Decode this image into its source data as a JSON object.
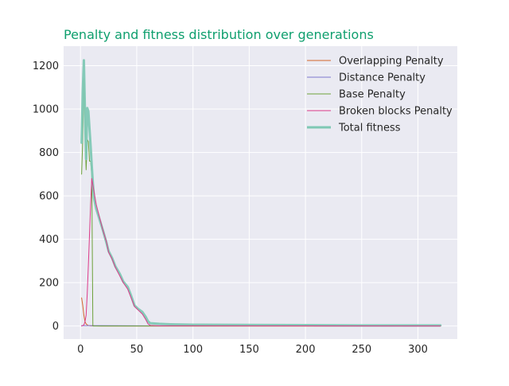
{
  "chart_data": {
    "type": "line",
    "title": "Penalty and fitness distribution over generations",
    "xlabel": "",
    "ylabel": "",
    "xlim": [
      -15,
      335
    ],
    "ylim": [
      -60,
      1290
    ],
    "xticks": [
      0,
      50,
      100,
      150,
      200,
      250,
      300
    ],
    "yticks": [
      0,
      200,
      400,
      600,
      800,
      1000,
      1200
    ],
    "grid": true,
    "legend_position": "top-right",
    "colors": {
      "background": "#EAEAF2",
      "grid": "#FFFFFF",
      "title": "#0F9F6E"
    },
    "series": [
      {
        "name": "Overlapping Penalty",
        "color": "#D4652B",
        "width": 1,
        "points": [
          [
            1,
            130
          ],
          [
            2,
            95
          ],
          [
            3,
            50
          ],
          [
            4,
            20
          ],
          [
            5,
            10
          ],
          [
            6,
            5
          ],
          [
            7,
            3
          ],
          [
            9,
            1
          ],
          [
            20,
            0
          ],
          [
            60,
            0
          ],
          [
            320,
            0
          ]
        ]
      },
      {
        "name": "Distance Penalty",
        "color": "#7F78CF",
        "width": 1,
        "points": [
          [
            1,
            2
          ],
          [
            10,
            2
          ],
          [
            60,
            1
          ],
          [
            320,
            0
          ]
        ]
      },
      {
        "name": "Base Penalty",
        "color": "#6DA13A",
        "width": 1,
        "points": [
          [
            1,
            700
          ],
          [
            2,
            860
          ],
          [
            3,
            1140
          ],
          [
            4,
            900
          ],
          [
            5,
            720
          ],
          [
            6,
            860
          ],
          [
            7,
            850
          ],
          [
            8,
            760
          ],
          [
            9,
            760
          ],
          [
            10,
            700
          ],
          [
            11,
            0
          ],
          [
            60,
            0
          ],
          [
            320,
            0
          ]
        ]
      },
      {
        "name": "Broken blocks Penalty",
        "color": "#DD3A8A",
        "width": 1,
        "points": [
          [
            1,
            0
          ],
          [
            3,
            5
          ],
          [
            4,
            20
          ],
          [
            5,
            50
          ],
          [
            6,
            150
          ],
          [
            7,
            280
          ],
          [
            8,
            420
          ],
          [
            9,
            560
          ],
          [
            10,
            680
          ],
          [
            12,
            620
          ],
          [
            14,
            560
          ],
          [
            17,
            500
          ],
          [
            20,
            440
          ],
          [
            23,
            390
          ],
          [
            25,
            340
          ],
          [
            28,
            310
          ],
          [
            31,
            270
          ],
          [
            35,
            230
          ],
          [
            38,
            200
          ],
          [
            42,
            170
          ],
          [
            45,
            130
          ],
          [
            48,
            90
          ],
          [
            51,
            75
          ],
          [
            55,
            55
          ],
          [
            58,
            30
          ],
          [
            60,
            10
          ],
          [
            62,
            3
          ],
          [
            70,
            1
          ],
          [
            320,
            0
          ]
        ]
      },
      {
        "name": "Total fitness",
        "color": "#7FC8B4",
        "width": 3,
        "points": [
          [
            1,
            845
          ],
          [
            2,
            1080
          ],
          [
            3,
            1225
          ],
          [
            4,
            980
          ],
          [
            5,
            770
          ],
          [
            6,
            1005
          ],
          [
            7,
            990
          ],
          [
            8,
            910
          ],
          [
            9,
            830
          ],
          [
            10,
            740
          ],
          [
            11,
            660
          ],
          [
            12,
            590
          ],
          [
            14,
            540
          ],
          [
            17,
            490
          ],
          [
            20,
            440
          ],
          [
            23,
            385
          ],
          [
            25,
            345
          ],
          [
            28,
            315
          ],
          [
            31,
            275
          ],
          [
            35,
            240
          ],
          [
            38,
            205
          ],
          [
            42,
            180
          ],
          [
            45,
            140
          ],
          [
            48,
            95
          ],
          [
            51,
            80
          ],
          [
            55,
            65
          ],
          [
            58,
            42
          ],
          [
            60,
            22
          ],
          [
            62,
            13
          ],
          [
            70,
            10
          ],
          [
            80,
            8
          ],
          [
            100,
            6
          ],
          [
            150,
            5
          ],
          [
            200,
            4
          ],
          [
            250,
            3
          ],
          [
            300,
            3
          ],
          [
            320,
            3
          ]
        ]
      }
    ]
  }
}
